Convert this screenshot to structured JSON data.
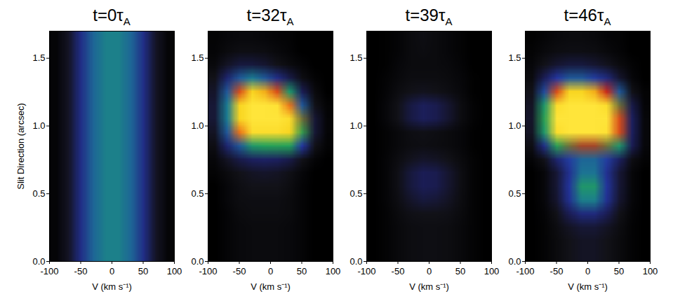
{
  "chart_data": [
    {
      "type": "heatmap",
      "title": "t=0τA",
      "xlabel": "V (km s⁻¹)",
      "ylabel": "Slit Direction (arcsec)",
      "xlim": [
        -100,
        100
      ],
      "ylim": [
        0,
        1.7
      ],
      "zlim": [
        0,
        10
      ],
      "xticks": [
        -100,
        -50,
        0,
        50,
        100
      ],
      "yticks": [
        {
          "value": 0,
          "label": "0.0"
        },
        {
          "value": 0.5,
          "label": "0.5"
        },
        {
          "value": 1,
          "label": "1.0"
        },
        {
          "value": 1.5,
          "label": "1.5"
        }
      ],
      "x": [
        -90,
        -70,
        -50,
        -30,
        -10,
        10,
        30,
        50,
        70,
        90
      ],
      "y": [
        0.05,
        0.15,
        0.25,
        0.35,
        0.45,
        0.55,
        0.65,
        0.75,
        0.85,
        0.95,
        1.05,
        1.15,
        1.25,
        1.35,
        1.45,
        1.55,
        1.65
      ],
      "values": [
        [
          0.3,
          1.2,
          3,
          4.2,
          4.6,
          4.6,
          4.2,
          3,
          1.2,
          0.3
        ],
        [
          0.3,
          1.2,
          3,
          4.2,
          4.6,
          4.6,
          4.2,
          3,
          1.2,
          0.3
        ],
        [
          0.3,
          1.2,
          3,
          4.2,
          4.6,
          4.6,
          4.2,
          3,
          1.2,
          0.3
        ],
        [
          0.3,
          1.2,
          3,
          4.2,
          4.6,
          4.6,
          4.2,
          3,
          1.2,
          0.3
        ],
        [
          0.3,
          1.2,
          3,
          4.2,
          4.6,
          4.6,
          4.2,
          3,
          1.2,
          0.3
        ],
        [
          0.3,
          1.2,
          3,
          4.2,
          4.6,
          4.6,
          4.2,
          3,
          1.2,
          0.3
        ],
        [
          0.3,
          1.2,
          3,
          4.2,
          4.6,
          4.6,
          4.2,
          3,
          1.2,
          0.3
        ],
        [
          0.3,
          1.2,
          3,
          4.2,
          4.6,
          4.6,
          4.2,
          3,
          1.2,
          0.3
        ],
        [
          0.3,
          1.2,
          3,
          4.2,
          4.6,
          4.6,
          4.2,
          3,
          1.2,
          0.3
        ],
        [
          0.3,
          1.2,
          3,
          4.2,
          4.6,
          4.6,
          4.2,
          3,
          1.2,
          0.3
        ],
        [
          0.3,
          1.2,
          3,
          4.2,
          4.6,
          4.6,
          4.2,
          3,
          1.2,
          0.3
        ],
        [
          0.3,
          1.2,
          3,
          4.2,
          4.6,
          4.6,
          4.2,
          3,
          1.2,
          0.3
        ],
        [
          0.3,
          1.2,
          3,
          4.2,
          4.6,
          4.6,
          4.2,
          3,
          1.2,
          0.3
        ],
        [
          0.3,
          1.2,
          3,
          4.2,
          4.6,
          4.6,
          4.2,
          3,
          1.2,
          0.3
        ],
        [
          0.3,
          1.2,
          3,
          4.2,
          4.6,
          4.6,
          4.2,
          3,
          1.2,
          0.3
        ],
        [
          0.3,
          1.2,
          3,
          4.2,
          4.6,
          4.6,
          4.2,
          3,
          1.2,
          0.3
        ],
        [
          0.3,
          1.2,
          3,
          4.2,
          4.6,
          4.6,
          4.2,
          3,
          1.2,
          0.3
        ]
      ]
    },
    {
      "type": "heatmap",
      "title": "t=32τA",
      "xlabel": "V (km s⁻¹)",
      "xlim": [
        -100,
        100
      ],
      "ylim": [
        0,
        1.7
      ],
      "zlim": [
        0,
        10
      ],
      "xticks": [
        -100,
        -50,
        0,
        50,
        100
      ],
      "yticks": [
        {
          "value": 0,
          "label": "0.0"
        },
        {
          "value": 0.5,
          "label": "0.5"
        },
        {
          "value": 1,
          "label": "1.0"
        },
        {
          "value": 1.5,
          "label": "1.5"
        }
      ],
      "x": [
        -90,
        -70,
        -50,
        -30,
        -10,
        10,
        30,
        50,
        70,
        90
      ],
      "y": [
        0.05,
        0.15,
        0.25,
        0.35,
        0.45,
        0.55,
        0.65,
        0.75,
        0.85,
        0.95,
        1.05,
        1.15,
        1.25,
        1.35,
        1.45,
        1.55,
        1.65
      ],
      "values": [
        [
          0,
          0.3,
          0.5,
          0.6,
          0.6,
          0.6,
          0.5,
          0.3,
          0,
          0
        ],
        [
          0,
          0.3,
          0.5,
          0.6,
          0.6,
          0.6,
          0.5,
          0.3,
          0,
          0
        ],
        [
          0,
          0.3,
          0.5,
          0.6,
          0.6,
          0.6,
          0.5,
          0.3,
          0,
          0
        ],
        [
          0,
          0.3,
          0.6,
          0.7,
          0.7,
          0.7,
          0.6,
          0.3,
          0,
          0
        ],
        [
          0,
          0.4,
          0.7,
          0.8,
          0.8,
          0.8,
          0.6,
          0.3,
          0,
          0
        ],
        [
          0,
          0.4,
          0.8,
          1.0,
          1.0,
          1.0,
          0.7,
          0.3,
          0,
          0
        ],
        [
          0.2,
          0.6,
          1.0,
          1.2,
          1.3,
          1.2,
          0.9,
          0.4,
          0,
          0
        ],
        [
          0.4,
          1.2,
          1.8,
          2.2,
          2.3,
          2.2,
          1.8,
          1.0,
          0.3,
          0
        ],
        [
          0.8,
          2.5,
          4,
          5,
          5.2,
          5.4,
          5.2,
          3.5,
          1,
          0.2
        ],
        [
          1.2,
          4,
          8,
          9.5,
          9.5,
          9.5,
          9,
          6,
          1.5,
          0.3
        ],
        [
          1.5,
          4.5,
          9,
          10,
          10,
          10,
          9.5,
          6.5,
          1.5,
          0.3
        ],
        [
          1.5,
          4.5,
          9,
          10,
          10,
          9.8,
          8,
          4,
          1,
          0.2
        ],
        [
          1.3,
          4,
          7.5,
          9,
          8.5,
          7.5,
          5,
          2,
          0.6,
          0
        ],
        [
          1,
          2.5,
          4,
          4.5,
          4,
          3,
          1.8,
          0.8,
          0.2,
          0
        ],
        [
          0.5,
          1.2,
          1.6,
          1.6,
          1.4,
          1,
          0.6,
          0.3,
          0,
          0
        ],
        [
          0.3,
          0.6,
          0.8,
          0.8,
          0.7,
          0.5,
          0.3,
          0,
          0,
          0
        ],
        [
          0.2,
          0.4,
          0.5,
          0.5,
          0.4,
          0.3,
          0.2,
          0,
          0,
          0
        ]
      ]
    },
    {
      "type": "heatmap",
      "title": "t=39τA",
      "xlabel": "V (km s⁻¹)",
      "xlim": [
        -100,
        100
      ],
      "ylim": [
        0,
        1.7
      ],
      "zlim": [
        0,
        10
      ],
      "xticks": [
        -100,
        -50,
        0,
        50,
        100
      ],
      "yticks": [
        {
          "value": 0,
          "label": "0.0"
        },
        {
          "value": 0.5,
          "label": "0.5"
        },
        {
          "value": 1,
          "label": "1.0"
        },
        {
          "value": 1.5,
          "label": "1.5"
        }
      ],
      "x": [
        -90,
        -70,
        -50,
        -30,
        -10,
        10,
        30,
        50,
        70,
        90
      ],
      "y": [
        0.05,
        0.15,
        0.25,
        0.35,
        0.45,
        0.55,
        0.65,
        0.75,
        0.85,
        0.95,
        1.05,
        1.15,
        1.25,
        1.35,
        1.45,
        1.55,
        1.65
      ],
      "values": [
        [
          0,
          0.2,
          0.5,
          0.7,
          0.8,
          0.8,
          0.7,
          0.5,
          0.2,
          0
        ],
        [
          0,
          0.2,
          0.5,
          0.7,
          0.8,
          0.8,
          0.7,
          0.5,
          0.2,
          0
        ],
        [
          0,
          0.2,
          0.5,
          0.7,
          0.8,
          0.8,
          0.7,
          0.5,
          0.2,
          0
        ],
        [
          0,
          0.2,
          0.6,
          0.9,
          1.0,
          1.0,
          0.9,
          0.6,
          0.2,
          0
        ],
        [
          0,
          0.3,
          0.8,
          1.3,
          1.6,
          1.5,
          1.2,
          0.7,
          0.2,
          0
        ],
        [
          0,
          0.3,
          0.9,
          1.6,
          2.0,
          1.9,
          1.4,
          0.8,
          0.2,
          0
        ],
        [
          0,
          0.3,
          0.9,
          1.6,
          2.0,
          1.9,
          1.4,
          0.8,
          0.2,
          0
        ],
        [
          0,
          0.3,
          0.7,
          1.1,
          1.3,
          1.2,
          1.0,
          0.6,
          0.2,
          0
        ],
        [
          0,
          0.2,
          0.5,
          0.7,
          0.8,
          0.7,
          0.6,
          0.4,
          0.1,
          0
        ],
        [
          0,
          0.2,
          0.5,
          0.8,
          0.9,
          0.8,
          0.6,
          0.4,
          0.1,
          0
        ],
        [
          0,
          0.4,
          1.0,
          1.7,
          2.1,
          1.9,
          1.4,
          0.7,
          0.2,
          0
        ],
        [
          0,
          0.4,
          1.0,
          1.7,
          2.1,
          1.9,
          1.4,
          0.7,
          0.2,
          0
        ],
        [
          0,
          0.3,
          0.7,
          1.0,
          1.1,
          1.0,
          0.8,
          0.5,
          0.1,
          0
        ],
        [
          0,
          0.2,
          0.5,
          0.7,
          0.7,
          0.7,
          0.6,
          0.4,
          0.1,
          0
        ],
        [
          0,
          0.1,
          0.4,
          0.6,
          0.6,
          0.6,
          0.5,
          0.3,
          0,
          0
        ],
        [
          0,
          0.1,
          0.3,
          0.6,
          0.7,
          0.6,
          0.4,
          0.2,
          0,
          0
        ],
        [
          0,
          0.1,
          0.3,
          0.6,
          0.8,
          0.6,
          0.4,
          0.2,
          0,
          0
        ]
      ]
    },
    {
      "type": "heatmap",
      "title": "t=46τA",
      "xlabel": "V (km s⁻¹)",
      "xlim": [
        -100,
        100
      ],
      "ylim": [
        0,
        1.7
      ],
      "zlim": [
        0,
        10
      ],
      "xticks": [
        -100,
        -50,
        0,
        50,
        100
      ],
      "yticks": [
        {
          "value": 0,
          "label": "0.0"
        },
        {
          "value": 0.5,
          "label": "0.5"
        },
        {
          "value": 1,
          "label": "1.0"
        },
        {
          "value": 1.5,
          "label": "1.5"
        }
      ],
      "x": [
        -90,
        -70,
        -50,
        -30,
        -10,
        10,
        30,
        50,
        70,
        90
      ],
      "y": [
        0.05,
        0.15,
        0.25,
        0.35,
        0.45,
        0.55,
        0.65,
        0.75,
        0.85,
        0.95,
        1.05,
        1.15,
        1.25,
        1.35,
        1.45,
        1.55,
        1.65
      ],
      "values": [
        [
          0,
          0.2,
          0.6,
          1.0,
          1.2,
          1.2,
          1.0,
          0.6,
          0.2,
          0
        ],
        [
          0,
          0.2,
          0.6,
          1.0,
          1.2,
          1.2,
          1.0,
          0.6,
          0.2,
          0
        ],
        [
          0,
          0.2,
          0.7,
          1.2,
          1.5,
          1.5,
          1.2,
          0.7,
          0.2,
          0
        ],
        [
          0,
          0.3,
          1.0,
          2.0,
          2.8,
          2.8,
          2.0,
          1.0,
          0.3,
          0
        ],
        [
          0,
          0.4,
          1.4,
          3.2,
          4.6,
          4.6,
          3.2,
          1.4,
          0.4,
          0
        ],
        [
          0,
          0.4,
          1.5,
          3.4,
          5.0,
          5.0,
          3.4,
          1.5,
          0.4,
          0
        ],
        [
          0,
          0.4,
          1.5,
          3.2,
          4.4,
          4.4,
          3.2,
          1.5,
          0.4,
          0
        ],
        [
          0.3,
          1.0,
          2.5,
          3.6,
          4.2,
          4.2,
          3.6,
          2.2,
          0.8,
          0.2
        ],
        [
          0.8,
          3,
          5.5,
          6.5,
          6.8,
          6.8,
          6.5,
          5,
          2,
          0.4
        ],
        [
          1.2,
          5,
          9.5,
          10,
          10,
          10,
          9.8,
          7.5,
          2.2,
          0.4
        ],
        [
          1.3,
          5.5,
          10,
          10,
          10,
          10,
          10,
          7.5,
          2.2,
          0.4
        ],
        [
          1.2,
          5,
          9.5,
          10,
          10,
          10,
          9.5,
          6.5,
          1.8,
          0.3
        ],
        [
          1,
          3.8,
          7.5,
          9,
          9,
          8.5,
          7,
          4,
          1,
          0.2
        ],
        [
          0.6,
          2,
          3.5,
          4,
          4,
          3.6,
          2.8,
          1.4,
          0.4,
          0
        ],
        [
          0.4,
          1,
          1.4,
          1.6,
          1.6,
          1.4,
          1.1,
          0.6,
          0.2,
          0
        ],
        [
          0.2,
          0.5,
          0.7,
          0.8,
          0.8,
          0.7,
          0.5,
          0.3,
          0,
          0
        ],
        [
          0.1,
          0.3,
          0.5,
          0.6,
          0.6,
          0.5,
          0.3,
          0.2,
          0,
          0
        ]
      ]
    }
  ]
}
